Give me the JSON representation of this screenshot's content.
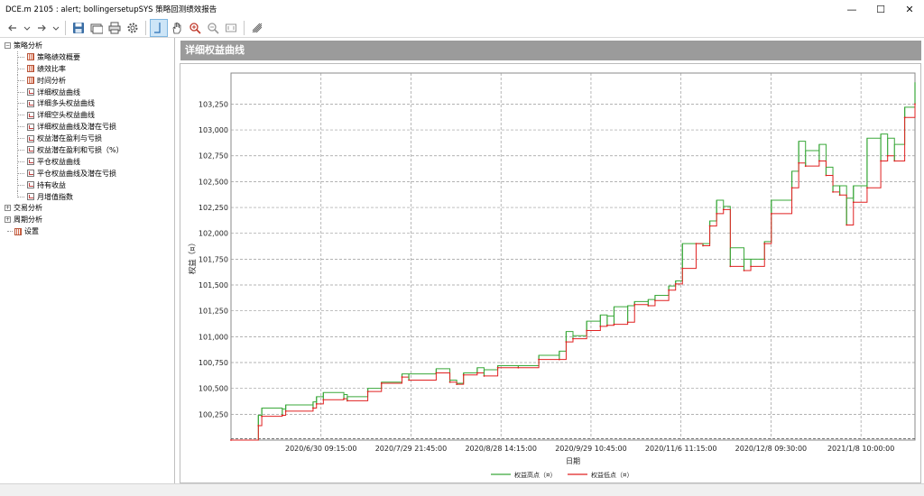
{
  "window": {
    "title": "DCE.m 2105 : alert; bollingersetupSYS 策略回测绩效报告",
    "minimize": "—",
    "maximize": "☐",
    "close": "✕"
  },
  "toolbar": {
    "icons": [
      "back-icon",
      "dropdown-icon",
      "forward-icon",
      "dropdown-icon",
      "save-icon",
      "open-icon",
      "print-icon",
      "settings-icon",
      "crosshair-icon",
      "pan-hand-icon",
      "zoom-in-icon",
      "zoom-out-icon",
      "zoom-fit-icon",
      "export-icon"
    ]
  },
  "tree": {
    "groups": [
      {
        "label": "策略分析",
        "expanded": true,
        "items": [
          {
            "label": "策略绩效概要",
            "icon": "table"
          },
          {
            "label": "绩效比率",
            "icon": "table"
          },
          {
            "label": "时间分析",
            "icon": "table"
          },
          {
            "label": "详细权益曲线",
            "icon": "chart"
          },
          {
            "label": "详细多头权益曲线",
            "icon": "chart"
          },
          {
            "label": "详细空头权益曲线",
            "icon": "chart"
          },
          {
            "label": "详细权益曲线及潜在亏损",
            "icon": "chart"
          },
          {
            "label": "权益潜在盈利与亏损",
            "icon": "chart"
          },
          {
            "label": "权益潜在盈利和亏损（%）",
            "icon": "chart"
          },
          {
            "label": "平仓权益曲线",
            "icon": "chart"
          },
          {
            "label": "平仓权益曲线及潜在亏损",
            "icon": "chart"
          },
          {
            "label": "持有收益",
            "icon": "chart"
          },
          {
            "label": "月增值指数",
            "icon": "chart"
          }
        ]
      },
      {
        "label": "交易分析",
        "expanded": false
      },
      {
        "label": "周期分析",
        "expanded": false
      }
    ],
    "settings_label": "设置"
  },
  "panel": {
    "title": "详细权益曲线"
  },
  "colors": {
    "high": "#3aa83a",
    "low": "#e02020",
    "panel_title_bg": "#9b9b9b",
    "grid": "#9a9a9a"
  },
  "chart_data": {
    "type": "line",
    "title": "",
    "xlabel": "日期",
    "ylabel": "权益（¤）",
    "ylim": [
      100000,
      103550
    ],
    "yticks": [
      "100,250",
      "100,500",
      "100,750",
      "101,000",
      "101,250",
      "101,500",
      "101,750",
      "102,000",
      "102,250",
      "102,500",
      "102,750",
      "103,000",
      "103,250"
    ],
    "ytick_values": [
      100250,
      100500,
      100750,
      101000,
      101250,
      101500,
      101750,
      102000,
      102250,
      102500,
      102750,
      103000,
      103250
    ],
    "xticks": [
      "2020/6/30 09:15:00",
      "2020/7/29 21:45:00",
      "2020/8/28 14:15:00",
      "2020/9/29 10:45:00",
      "2020/11/6 11:15:00",
      "2020/12/8 09:30:00",
      "2021/1/8 10:00:00"
    ],
    "grid": true,
    "legend_position": "bottom",
    "series": [
      {
        "name": "权益高点（¤）",
        "color": "#3aa83a"
      },
      {
        "name": "权益低点（¤）",
        "color": "#e02020"
      }
    ],
    "x": [
      0.0,
      0.04,
      0.045,
      0.075,
      0.08,
      0.12,
      0.125,
      0.135,
      0.165,
      0.17,
      0.2,
      0.22,
      0.25,
      0.26,
      0.3,
      0.32,
      0.33,
      0.34,
      0.36,
      0.37,
      0.39,
      0.42,
      0.45,
      0.48,
      0.49,
      0.5,
      0.52,
      0.54,
      0.55,
      0.56,
      0.58,
      0.59,
      0.61,
      0.62,
      0.64,
      0.65,
      0.66,
      0.68,
      0.69,
      0.7,
      0.71,
      0.72,
      0.73,
      0.75,
      0.76,
      0.78,
      0.79,
      0.82,
      0.83,
      0.84,
      0.86,
      0.87,
      0.88,
      0.89,
      0.9,
      0.91,
      0.93,
      0.95,
      0.96,
      0.97,
      0.985,
      1.0
    ],
    "low": [
      100000,
      100140,
      100230,
      100240,
      100280,
      100310,
      100350,
      100390,
      100400,
      100380,
      100470,
      100550,
      100610,
      100580,
      100650,
      100560,
      100540,
      100630,
      100650,
      100620,
      100700,
      100700,
      100780,
      100780,
      100950,
      100980,
      101060,
      101100,
      101110,
      101120,
      101140,
      101310,
      101300,
      101350,
      101450,
      101510,
      101660,
      101900,
      101880,
      102070,
      102190,
      102230,
      101680,
      101640,
      101680,
      101900,
      102190,
      102440,
      102680,
      102650,
      102700,
      102560,
      102400,
      102370,
      102080,
      102300,
      102440,
      102700,
      102750,
      102700,
      103120,
      103250
    ],
    "high": [
      100000,
      100240,
      100310,
      100300,
      100340,
      100370,
      100420,
      100460,
      100440,
      100420,
      100500,
      100560,
      100640,
      100640,
      100690,
      100580,
      100550,
      100650,
      100700,
      100680,
      100720,
      100720,
      100820,
      100860,
      101050,
      101010,
      101150,
      101210,
      101200,
      101290,
      101300,
      101340,
      101360,
      101400,
      101490,
      101540,
      101900,
      101900,
      101900,
      102120,
      102320,
      102260,
      101860,
      101750,
      101750,
      101920,
      102320,
      102600,
      102890,
      102800,
      102860,
      102640,
      102460,
      102460,
      102340,
      102460,
      102920,
      102960,
      102920,
      102860,
      103220,
      103460
    ]
  }
}
